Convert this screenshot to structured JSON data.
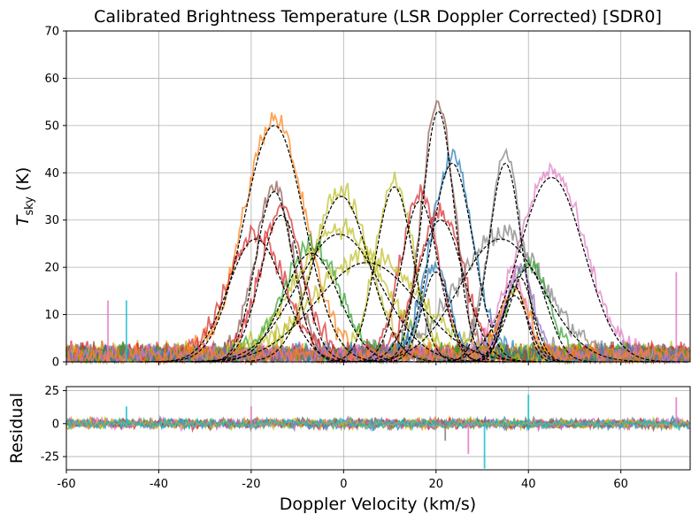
{
  "chart_data": [
    {
      "type": "line",
      "title": "Calibrated Brightness Temperature (LSR Doppler Corrected) [SDR0]",
      "ylabel_main": "T",
      "ylabel_sub": "sky",
      "ylabel_unit": " (K)",
      "xlim": [
        -60,
        75
      ],
      "ylim": [
        0,
        70
      ],
      "xticks": [
        -60,
        -40,
        -20,
        0,
        20,
        40,
        60
      ],
      "yticks": [
        0,
        10,
        20,
        30,
        40,
        50,
        60,
        70
      ],
      "grid": true,
      "noise_colors": [
        "#1f77b4",
        "#ff7f0e",
        "#2ca02c",
        "#d62728",
        "#9467bd",
        "#8c564b",
        "#e377c2",
        "#7f7f7f",
        "#bcbd22",
        "#17becf"
      ],
      "fit_style": "black dashed",
      "series": [
        {
          "color": "#ff7f0e",
          "fit": {
            "amp": 50,
            "center": -15,
            "sigma": 6.5
          }
        },
        {
          "color": "#8c564b",
          "fit": {
            "amp": 53,
            "center": 20.5,
            "sigma": 3.5
          }
        },
        {
          "color": "#1f77b4",
          "fit": {
            "amp": 42,
            "center": 23.5,
            "sigma": 4.5
          }
        },
        {
          "color": "#7f7f7f",
          "fit": {
            "amp": 42,
            "center": 35,
            "sigma": 3.5
          }
        },
        {
          "color": "#e377c2",
          "fit": {
            "amp": 39,
            "center": 45,
            "sigma": 7
          }
        },
        {
          "color": "#bcbd22",
          "fit": {
            "amp": 35,
            "center": -0.5,
            "sigma": 6
          }
        },
        {
          "color": "#bcbd22",
          "fit": {
            "amp": 37,
            "center": 11,
            "sigma": 4
          }
        },
        {
          "color": "#8c564b",
          "fit": {
            "amp": 36,
            "center": -15,
            "sigma": 4
          }
        },
        {
          "color": "#d62728",
          "fit": {
            "amp": 31,
            "center": -13.5,
            "sigma": 4.5
          }
        },
        {
          "color": "#d62728",
          "fit": {
            "amp": 34,
            "center": 16.5,
            "sigma": 4
          }
        },
        {
          "color": "#d62728",
          "fit": {
            "amp": 30,
            "center": 21,
            "sigma": 5
          }
        },
        {
          "color": "#bcbd22",
          "fit": {
            "amp": 27,
            "center": -1,
            "sigma": 9
          }
        },
        {
          "color": "#d62728",
          "fit": {
            "amp": 26,
            "center": -19,
            "sigma": 6
          }
        },
        {
          "color": "#7f7f7f",
          "fit": {
            "amp": 26,
            "center": 34,
            "sigma": 9
          }
        },
        {
          "color": "#2ca02c",
          "fit": {
            "amp": 23,
            "center": -7,
            "sigma": 6
          }
        },
        {
          "color": "#bcbd22",
          "fit": {
            "amp": 21,
            "center": 5,
            "sigma": 11
          }
        },
        {
          "color": "#2ca02c",
          "fit": {
            "amp": 20,
            "center": 40,
            "sigma": 4
          }
        },
        {
          "color": "#1f77b4",
          "fit": {
            "amp": 19,
            "center": 20,
            "sigma": 3
          }
        },
        {
          "color": "#9467bd",
          "fit": {
            "amp": 18,
            "center": 38,
            "sigma": 3
          }
        },
        {
          "color": "#e377c2",
          "fit": {
            "amp": 16,
            "center": 37,
            "sigma": 2.5
          }
        },
        {
          "color": "#ff7f0e",
          "fit": {
            "amp": 14,
            "center": 37,
            "sigma": 3
          }
        }
      ],
      "spikes": [
        {
          "x": -47,
          "y": 13,
          "color": "#17becf"
        },
        {
          "x": -51,
          "y": 13,
          "color": "#e377c2"
        },
        {
          "x": 72,
          "y": 19,
          "color": "#e377c2"
        }
      ]
    },
    {
      "type": "line",
      "ylabel": "Residual",
      "xlabel": "Doppler Velocity (km/s)",
      "xlim": [
        -60,
        75
      ],
      "ylim": [
        -35,
        28
      ],
      "xticks": [
        -60,
        -40,
        -20,
        0,
        20,
        40,
        60
      ],
      "yticks": [
        -25,
        0,
        25
      ],
      "grid": true,
      "spikes": [
        {
          "x": -47,
          "y": 13,
          "color": "#17becf"
        },
        {
          "x": 30.5,
          "y": -34,
          "color": "#17becf"
        },
        {
          "x": 40,
          "y": 22,
          "color": "#17becf"
        },
        {
          "x": 22,
          "y": -13,
          "color": "#7f7f7f"
        },
        {
          "x": 27,
          "y": -23,
          "color": "#e377c2"
        },
        {
          "x": 72,
          "y": 20,
          "color": "#e377c2"
        },
        {
          "x": -20,
          "y": 13,
          "color": "#e377c2"
        }
      ]
    }
  ]
}
